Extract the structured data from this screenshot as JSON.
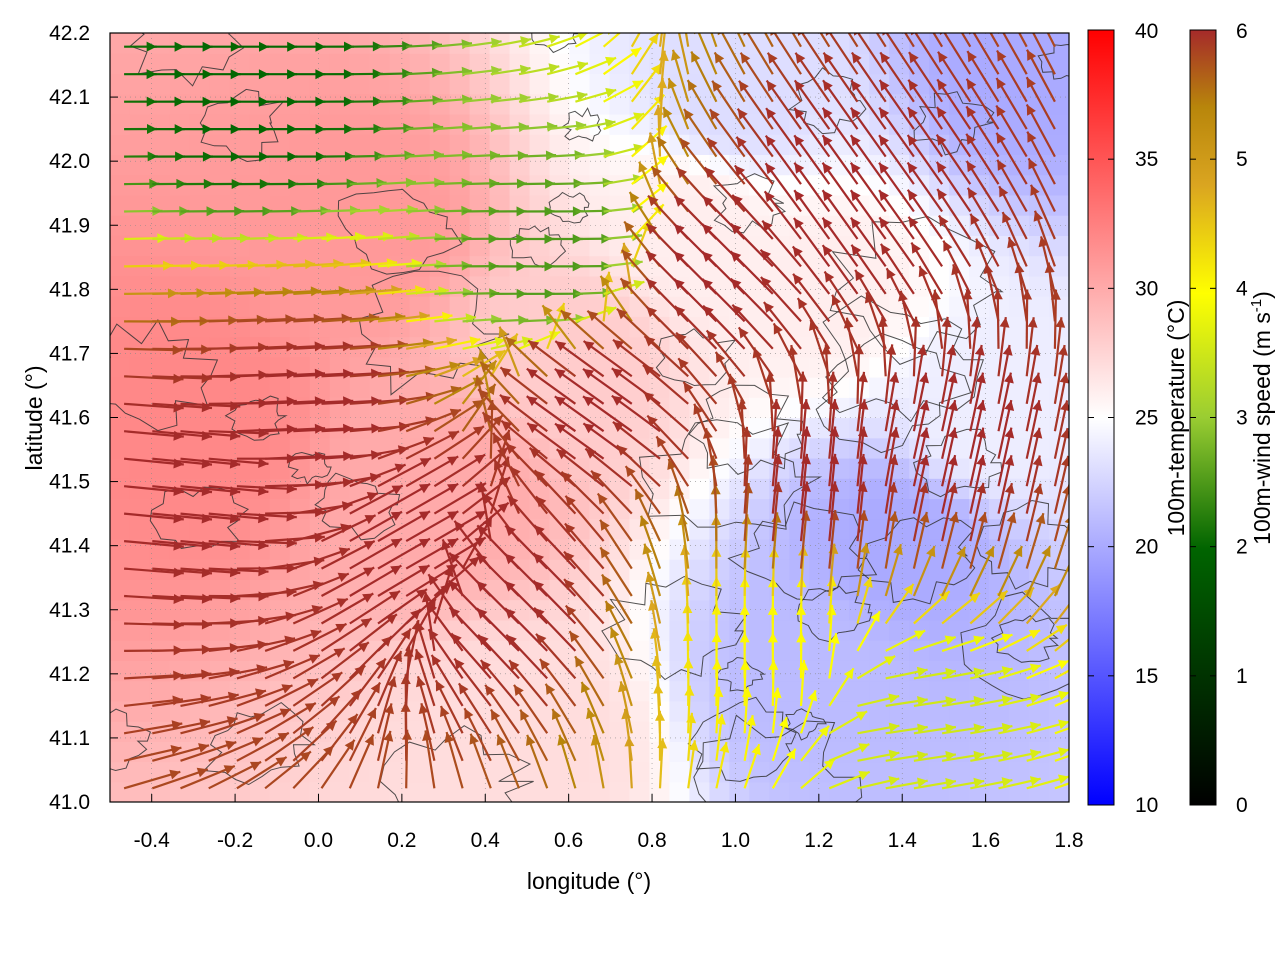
{
  "chart_data": {
    "type": "heatmap",
    "title": "",
    "xlabel": "longitude (°)",
    "ylabel": "latitude (°)",
    "xlim": [
      -0.5,
      1.8
    ],
    "ylim": [
      41.0,
      42.2
    ],
    "x_ticks": [
      "-0.4",
      "-0.2",
      "0.0",
      "0.2",
      "0.4",
      "0.6",
      "0.8",
      "1.0",
      "1.2",
      "1.4",
      "1.6",
      "1.8"
    ],
    "y_ticks": [
      "41.0",
      "41.1",
      "41.2",
      "41.3",
      "41.4",
      "41.5",
      "41.6",
      "41.7",
      "41.8",
      "41.9",
      "42.0",
      "42.1",
      "42.2"
    ],
    "grid": true,
    "temperature_colorbar": {
      "label": "100m-temperature (°C)",
      "range": [
        10,
        40
      ],
      "ticks": [
        "10",
        "15",
        "20",
        "25",
        "30",
        "35",
        "40"
      ],
      "colors": [
        "#0000ff",
        "#ffffff",
        "#ff0000"
      ]
    },
    "wind_colorbar": {
      "label_main": "100m-wind speed (m s",
      "label_sup": "-1",
      "label_end": ")",
      "range": [
        0,
        6
      ],
      "ticks": [
        "0",
        "1",
        "2",
        "3",
        "4",
        "5",
        "6"
      ],
      "colors": [
        "#000000",
        "#006400",
        "#9acd32",
        "#ffff00",
        "#daa520",
        "#b8860b",
        "#a52a2a"
      ]
    },
    "temperature_field": {
      "description_regions": [
        {
          "lon": -0.3,
          "lat": 41.6,
          "temp": 32
        },
        {
          "lon": 0.1,
          "lat": 41.9,
          "temp": 31
        },
        {
          "lon": 0.3,
          "lat": 41.5,
          "temp": 30
        },
        {
          "lon": 0.6,
          "lat": 41.7,
          "temp": 28
        },
        {
          "lon": 0.9,
          "lat": 41.9,
          "temp": 26
        },
        {
          "lon": 1.2,
          "lat": 41.8,
          "temp": 26
        },
        {
          "lon": 1.4,
          "lat": 41.4,
          "temp": 20
        },
        {
          "lon": 1.2,
          "lat": 41.2,
          "temp": 21
        },
        {
          "lon": 1.6,
          "lat": 41.6,
          "temp": 24
        },
        {
          "lon": 0.5,
          "lat": 41.1,
          "temp": 27
        },
        {
          "lon": 1.0,
          "lat": 42.1,
          "temp": 23
        },
        {
          "lon": 1.7,
          "lat": 42.15,
          "temp": 20
        }
      ]
    },
    "wind_field": {
      "regions": [
        {
          "lon": -0.35,
          "lat": 41.5,
          "u": 1.0,
          "v": -0.1,
          "speed": 6
        },
        {
          "lon": -0.1,
          "lat": 41.6,
          "u": 1.0,
          "v": 0.05,
          "speed": 6
        },
        {
          "lon": 0.2,
          "lat": 41.4,
          "u": 0.7,
          "v": 0.4,
          "speed": 6
        },
        {
          "lon": 0.5,
          "lat": 41.3,
          "u": -0.6,
          "v": 0.6,
          "speed": 6
        },
        {
          "lon": 0.7,
          "lat": 41.6,
          "u": -0.7,
          "v": 0.5,
          "speed": 6
        },
        {
          "lon": 1.0,
          "lat": 41.8,
          "u": -0.6,
          "v": 0.6,
          "speed": 6
        },
        {
          "lon": 1.3,
          "lat": 41.9,
          "u": -0.5,
          "v": 0.7,
          "speed": 6
        },
        {
          "lon": 1.5,
          "lat": 41.5,
          "u": 0.2,
          "v": 0.9,
          "speed": 6
        },
        {
          "lon": 1.2,
          "lat": 41.45,
          "u": 0.1,
          "v": 1.0,
          "speed": 6
        },
        {
          "lon": -0.2,
          "lat": 42.1,
          "u": 1.0,
          "v": 0.0,
          "speed": 2
        },
        {
          "lon": 0.5,
          "lat": 41.85,
          "u": 1.0,
          "v": 0.0,
          "speed": 2.5
        },
        {
          "lon": 1.4,
          "lat": 41.12,
          "u": 1.0,
          "v": 0.15,
          "speed": 3.5
        },
        {
          "lon": 1.1,
          "lat": 41.22,
          "u": 0.0,
          "v": 1.0,
          "speed": 4
        }
      ]
    }
  }
}
